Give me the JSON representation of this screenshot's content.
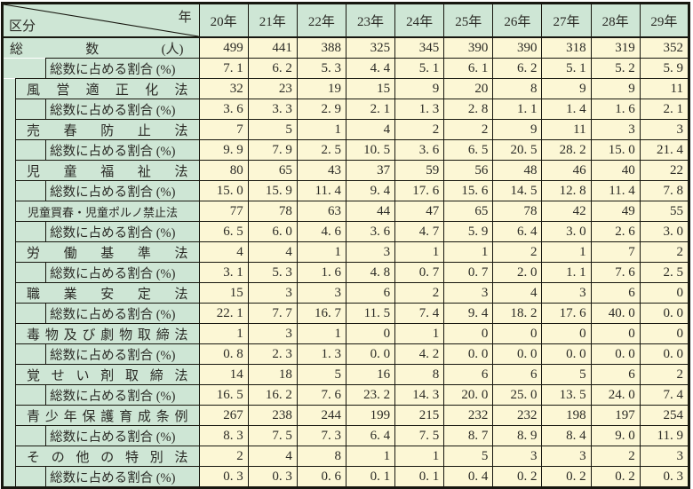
{
  "table": {
    "corner": {
      "top_right": "年",
      "bottom_left": "区分"
    },
    "year_headers": [
      "20年",
      "21年",
      "22年",
      "23年",
      "24年",
      "25年",
      "26年",
      "27年",
      "28年",
      "29年"
    ],
    "percent_row_label": "総数に占める割合 (%)",
    "rows": [
      {
        "kind": "total",
        "label": "総 数 (人)",
        "spread": true,
        "values": [
          "499",
          "441",
          "388",
          "325",
          "345",
          "390",
          "390",
          "318",
          "319",
          "352"
        ]
      },
      {
        "kind": "percent",
        "values": [
          "7. 1",
          "6. 2",
          "5. 3",
          "4. 4",
          "5. 1",
          "6. 1",
          "6. 2",
          "5. 1",
          "5. 2",
          "5. 9"
        ]
      },
      {
        "kind": "law",
        "label": "風 営 適 正 化 法",
        "spread": true,
        "values": [
          "32",
          "23",
          "19",
          "15",
          "9",
          "20",
          "8",
          "9",
          "9",
          "11"
        ]
      },
      {
        "kind": "percent",
        "values": [
          "3. 6",
          "3. 3",
          "2. 9",
          "2. 1",
          "1. 3",
          "2. 8",
          "1. 1",
          "1. 4",
          "1. 6",
          "2. 1"
        ]
      },
      {
        "kind": "law",
        "label": "売 春 防 止 法",
        "spread": true,
        "values": [
          "7",
          "5",
          "1",
          "4",
          "2",
          "2",
          "9",
          "11",
          "3",
          "3"
        ]
      },
      {
        "kind": "percent",
        "values": [
          "9. 9",
          "7. 9",
          "2. 5",
          "10. 5",
          "3. 6",
          "6. 5",
          "20. 5",
          "28. 2",
          "15. 0",
          "21. 4"
        ]
      },
      {
        "kind": "law",
        "label": "児 童 福 祉 法",
        "spread": true,
        "values": [
          "80",
          "65",
          "43",
          "37",
          "59",
          "56",
          "48",
          "46",
          "40",
          "22"
        ]
      },
      {
        "kind": "percent",
        "values": [
          "15. 0",
          "15. 9",
          "11. 4",
          "9. 4",
          "17. 6",
          "15. 6",
          "14. 5",
          "12. 8",
          "11. 4",
          "7. 8"
        ]
      },
      {
        "kind": "law",
        "label": "児童買春・児童ポルノ禁止法",
        "spread": false,
        "long": true,
        "values": [
          "77",
          "78",
          "63",
          "44",
          "47",
          "65",
          "78",
          "42",
          "49",
          "55"
        ]
      },
      {
        "kind": "percent",
        "values": [
          "6. 5",
          "6. 0",
          "4. 6",
          "3. 6",
          "4. 7",
          "5. 9",
          "6. 4",
          "3. 0",
          "2. 6",
          "3. 0"
        ]
      },
      {
        "kind": "law",
        "label": "労 働 基 準 法",
        "spread": true,
        "values": [
          "4",
          "4",
          "1",
          "3",
          "1",
          "1",
          "2",
          "1",
          "7",
          "2"
        ]
      },
      {
        "kind": "percent",
        "values": [
          "3. 1",
          "5. 3",
          "1. 6",
          "4. 8",
          "0. 7",
          "0. 7",
          "2. 0",
          "1. 1",
          "7. 6",
          "2. 5"
        ]
      },
      {
        "kind": "law",
        "label": "職 業 安 定 法",
        "spread": true,
        "values": [
          "15",
          "3",
          "3",
          "6",
          "2",
          "3",
          "4",
          "3",
          "6",
          "0"
        ]
      },
      {
        "kind": "percent",
        "values": [
          "22. 1",
          "7. 7",
          "16. 7",
          "11. 5",
          "7. 4",
          "9. 4",
          "18. 2",
          "17. 6",
          "40. 0",
          "0. 0"
        ]
      },
      {
        "kind": "law",
        "label": "毒 物 及 び 劇 物 取 締 法",
        "spread": true,
        "values": [
          "1",
          "3",
          "1",
          "0",
          "1",
          "0",
          "0",
          "0",
          "0",
          "0"
        ]
      },
      {
        "kind": "percent",
        "values": [
          "0. 8",
          "2. 3",
          "1. 3",
          "0. 0",
          "4. 2",
          "0. 0",
          "0. 0",
          "0. 0",
          "0. 0",
          "0. 0"
        ]
      },
      {
        "kind": "law",
        "label": "覚 せ い 剤 取 締 法",
        "spread": true,
        "values": [
          "14",
          "18",
          "5",
          "16",
          "8",
          "6",
          "6",
          "5",
          "6",
          "2"
        ]
      },
      {
        "kind": "percent",
        "values": [
          "16. 5",
          "16. 2",
          "7. 6",
          "23. 2",
          "14. 3",
          "20. 0",
          "25. 0",
          "13. 5",
          "24. 0",
          "7. 4"
        ]
      },
      {
        "kind": "law",
        "label": "青 少 年 保 護 育 成 条 例",
        "spread": true,
        "values": [
          "267",
          "238",
          "244",
          "199",
          "215",
          "232",
          "232",
          "198",
          "197",
          "254"
        ]
      },
      {
        "kind": "percent",
        "values": [
          "8. 3",
          "7. 5",
          "7. 3",
          "6. 4",
          "7. 5",
          "8. 7",
          "8. 9",
          "8. 4",
          "9. 0",
          "11. 9"
        ]
      },
      {
        "kind": "law",
        "label": "そ の 他 の 特 別 法",
        "spread": true,
        "values": [
          "2",
          "4",
          "8",
          "1",
          "1",
          "5",
          "3",
          "3",
          "2",
          "3"
        ]
      },
      {
        "kind": "percent",
        "values": [
          "0. 3",
          "0. 3",
          "0. 6",
          "0. 1",
          "0. 1",
          "0. 4",
          "0. 2",
          "0. 2",
          "0. 2",
          "0. 3"
        ]
      }
    ],
    "colors": {
      "header_green": "#cee6d5",
      "cell_cream": "#fcf7d5",
      "grid_line": "#17170f"
    }
  }
}
